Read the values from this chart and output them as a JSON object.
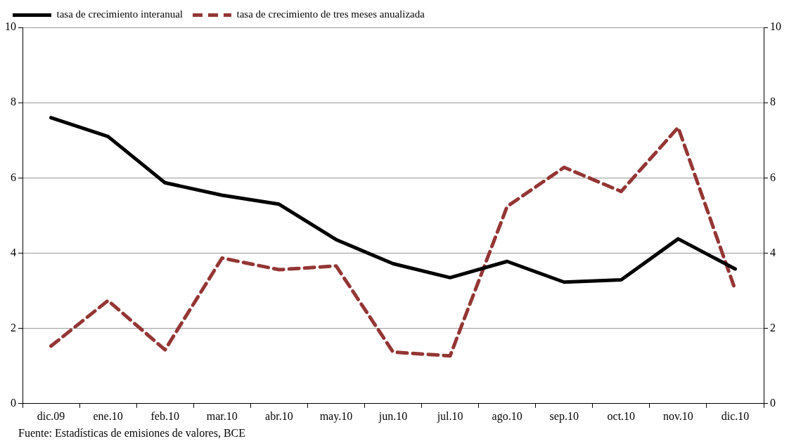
{
  "chart_data": {
    "type": "line",
    "categories": [
      "dic.09",
      "ene.10",
      "feb.10",
      "mar.10",
      "abr.10",
      "may.10",
      "jun.10",
      "jul.10",
      "ago.10",
      "sep.10",
      "oct.10",
      "nov.10",
      "dic.10"
    ],
    "series": [
      {
        "name": "tasa de crecimiento interanual",
        "color": "#000000",
        "line_style": "solid",
        "values": [
          7.6,
          7.1,
          5.87,
          5.54,
          5.3,
          4.36,
          3.72,
          3.35,
          3.78,
          3.23,
          3.29,
          4.38,
          3.58
        ]
      },
      {
        "name": "tasa de crecimiento de tres meses anualizada",
        "color": "#943634",
        "line_style": "dashed",
        "values": [
          1.53,
          2.74,
          1.43,
          3.87,
          3.56,
          3.66,
          1.37,
          1.27,
          5.24,
          6.28,
          5.64,
          7.34,
          3.03
        ]
      }
    ],
    "ylim": [
      0,
      10
    ],
    "yticks": [
      0,
      2,
      4,
      6,
      8,
      10
    ],
    "y2lim": [
      0,
      10
    ],
    "y2ticks": [
      0,
      2,
      4,
      6,
      8,
      10
    ],
    "grid": "y",
    "legend": "top left",
    "marker": "none",
    "annotations": [
      "Fuente: Estadísticas de emisiones de valores, BCE"
    ]
  }
}
